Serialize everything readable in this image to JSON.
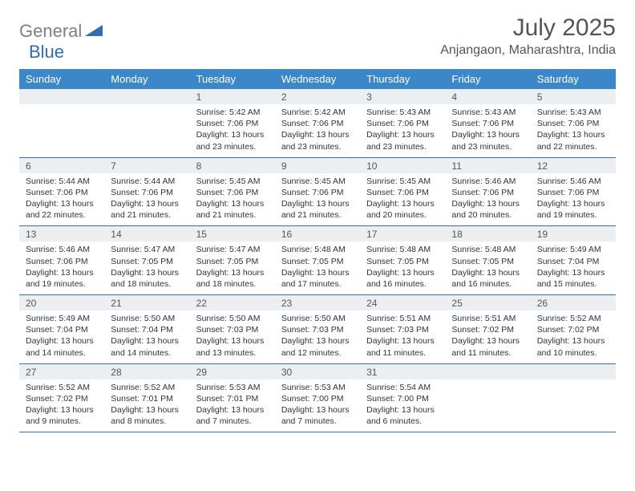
{
  "logo": {
    "general": "General",
    "blue": "Blue"
  },
  "title": "July 2025",
  "location": "Anjangaon, Maharashtra, India",
  "colors": {
    "header_bg": "#3b87c8",
    "header_text": "#ffffff",
    "daynum_bg": "#eceff1",
    "border": "#3b6fa3",
    "title_color": "#555555",
    "text_color": "#333333",
    "logo_gray": "#808080",
    "logo_blue": "#2c6fb5"
  },
  "weekdays": [
    "Sunday",
    "Monday",
    "Tuesday",
    "Wednesday",
    "Thursday",
    "Friday",
    "Saturday"
  ],
  "weeks": [
    [
      null,
      null,
      {
        "n": "1",
        "sr": "5:42 AM",
        "ss": "7:06 PM",
        "dl": "13 hours and 23 minutes."
      },
      {
        "n": "2",
        "sr": "5:42 AM",
        "ss": "7:06 PM",
        "dl": "13 hours and 23 minutes."
      },
      {
        "n": "3",
        "sr": "5:43 AM",
        "ss": "7:06 PM",
        "dl": "13 hours and 23 minutes."
      },
      {
        "n": "4",
        "sr": "5:43 AM",
        "ss": "7:06 PM",
        "dl": "13 hours and 23 minutes."
      },
      {
        "n": "5",
        "sr": "5:43 AM",
        "ss": "7:06 PM",
        "dl": "13 hours and 22 minutes."
      }
    ],
    [
      {
        "n": "6",
        "sr": "5:44 AM",
        "ss": "7:06 PM",
        "dl": "13 hours and 22 minutes."
      },
      {
        "n": "7",
        "sr": "5:44 AM",
        "ss": "7:06 PM",
        "dl": "13 hours and 21 minutes."
      },
      {
        "n": "8",
        "sr": "5:45 AM",
        "ss": "7:06 PM",
        "dl": "13 hours and 21 minutes."
      },
      {
        "n": "9",
        "sr": "5:45 AM",
        "ss": "7:06 PM",
        "dl": "13 hours and 21 minutes."
      },
      {
        "n": "10",
        "sr": "5:45 AM",
        "ss": "7:06 PM",
        "dl": "13 hours and 20 minutes."
      },
      {
        "n": "11",
        "sr": "5:46 AM",
        "ss": "7:06 PM",
        "dl": "13 hours and 20 minutes."
      },
      {
        "n": "12",
        "sr": "5:46 AM",
        "ss": "7:06 PM",
        "dl": "13 hours and 19 minutes."
      }
    ],
    [
      {
        "n": "13",
        "sr": "5:46 AM",
        "ss": "7:06 PM",
        "dl": "13 hours and 19 minutes."
      },
      {
        "n": "14",
        "sr": "5:47 AM",
        "ss": "7:05 PM",
        "dl": "13 hours and 18 minutes."
      },
      {
        "n": "15",
        "sr": "5:47 AM",
        "ss": "7:05 PM",
        "dl": "13 hours and 18 minutes."
      },
      {
        "n": "16",
        "sr": "5:48 AM",
        "ss": "7:05 PM",
        "dl": "13 hours and 17 minutes."
      },
      {
        "n": "17",
        "sr": "5:48 AM",
        "ss": "7:05 PM",
        "dl": "13 hours and 16 minutes."
      },
      {
        "n": "18",
        "sr": "5:48 AM",
        "ss": "7:05 PM",
        "dl": "13 hours and 16 minutes."
      },
      {
        "n": "19",
        "sr": "5:49 AM",
        "ss": "7:04 PM",
        "dl": "13 hours and 15 minutes."
      }
    ],
    [
      {
        "n": "20",
        "sr": "5:49 AM",
        "ss": "7:04 PM",
        "dl": "13 hours and 14 minutes."
      },
      {
        "n": "21",
        "sr": "5:50 AM",
        "ss": "7:04 PM",
        "dl": "13 hours and 14 minutes."
      },
      {
        "n": "22",
        "sr": "5:50 AM",
        "ss": "7:03 PM",
        "dl": "13 hours and 13 minutes."
      },
      {
        "n": "23",
        "sr": "5:50 AM",
        "ss": "7:03 PM",
        "dl": "13 hours and 12 minutes."
      },
      {
        "n": "24",
        "sr": "5:51 AM",
        "ss": "7:03 PM",
        "dl": "13 hours and 11 minutes."
      },
      {
        "n": "25",
        "sr": "5:51 AM",
        "ss": "7:02 PM",
        "dl": "13 hours and 11 minutes."
      },
      {
        "n": "26",
        "sr": "5:52 AM",
        "ss": "7:02 PM",
        "dl": "13 hours and 10 minutes."
      }
    ],
    [
      {
        "n": "27",
        "sr": "5:52 AM",
        "ss": "7:02 PM",
        "dl": "13 hours and 9 minutes."
      },
      {
        "n": "28",
        "sr": "5:52 AM",
        "ss": "7:01 PM",
        "dl": "13 hours and 8 minutes."
      },
      {
        "n": "29",
        "sr": "5:53 AM",
        "ss": "7:01 PM",
        "dl": "13 hours and 7 minutes."
      },
      {
        "n": "30",
        "sr": "5:53 AM",
        "ss": "7:00 PM",
        "dl": "13 hours and 7 minutes."
      },
      {
        "n": "31",
        "sr": "5:54 AM",
        "ss": "7:00 PM",
        "dl": "13 hours and 6 minutes."
      },
      null,
      null
    ]
  ],
  "labels": {
    "sunrise": "Sunrise:",
    "sunset": "Sunset:",
    "daylight": "Daylight:"
  }
}
